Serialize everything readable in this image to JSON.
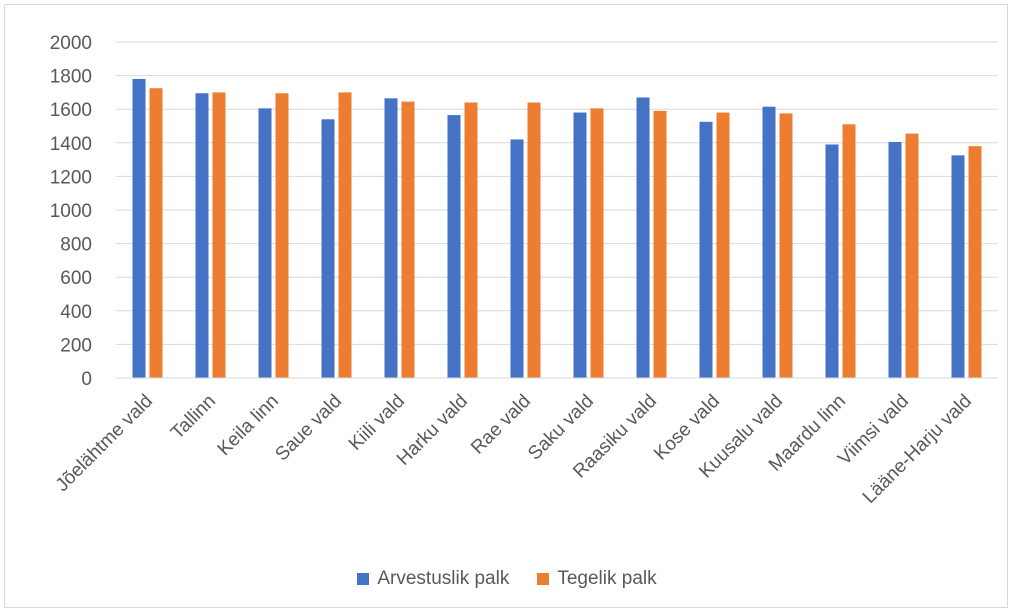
{
  "chart_data": {
    "type": "bar",
    "categories": [
      "Jõelähtme vald",
      "Tallinn",
      "Keila linn",
      "Saue vald",
      "Kiili vald",
      "Harku vald",
      "Rae vald",
      "Saku vald",
      "Raasiku vald",
      "Kose vald",
      "Kuusalu vald",
      "Maardu linn",
      "Viimsi vald",
      "Lääne-Harju vald"
    ],
    "series": [
      {
        "name": "Arvestuslik palk",
        "color": "#4472c4",
        "values": [
          1780,
          1695,
          1605,
          1540,
          1665,
          1565,
          1420,
          1580,
          1670,
          1525,
          1615,
          1390,
          1405,
          1325
        ]
      },
      {
        "name": "Tegelik palk",
        "color": "#ed7d31",
        "values": [
          1725,
          1700,
          1695,
          1700,
          1645,
          1640,
          1640,
          1605,
          1590,
          1580,
          1575,
          1510,
          1455,
          1380
        ]
      }
    ],
    "ylim": [
      0,
      2000
    ],
    "yticks": [
      0,
      200,
      400,
      600,
      800,
      1000,
      1200,
      1400,
      1600,
      1800,
      2000
    ],
    "grid": true,
    "legend_position": "bottom",
    "title": "",
    "xlabel": "",
    "ylabel": ""
  }
}
